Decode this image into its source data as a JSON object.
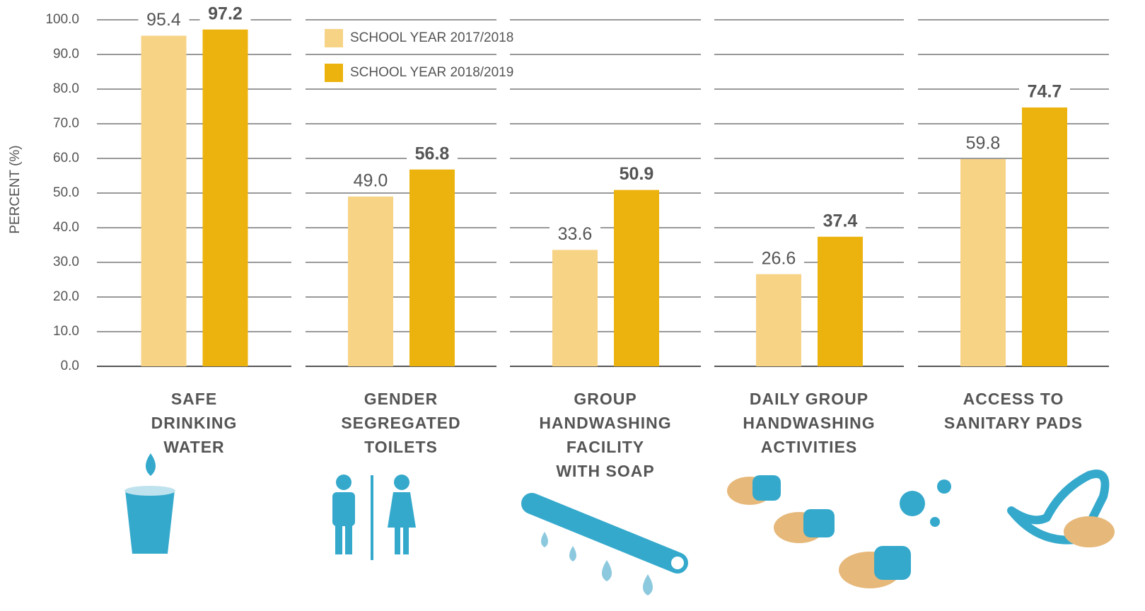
{
  "chart_data": {
    "type": "bar",
    "y_label": "PERCENT (%)",
    "categories": [
      "SAFE\nDRINKING\nWATER",
      "GENDER\nSEGREGATED\nTOILETS",
      "GROUP\nHANDWASHING\nFACILITY\nWITH SOAP",
      "DAILY GROUP\nHANDWASHING\nACTIVITIES",
      "ACCESS TO\nSANITARY PADS"
    ],
    "series": [
      {
        "name": "SCHOOL YEAR 2017/2018",
        "color": "#f7d386",
        "values": [
          95.4,
          49,
          33.6,
          26.6,
          59.8
        ],
        "value_labels": [
          "95.4",
          "49.0",
          "33.6",
          "26.6",
          "59.8"
        ]
      },
      {
        "name": "SCHOOL YEAR 2018/2019",
        "color": "#ecb30f",
        "values": [
          97.2,
          56.8,
          50.9,
          37.4,
          74.7
        ],
        "value_labels": [
          "97.2",
          "56.8",
          "50.9",
          "37.4",
          "74.7"
        ]
      }
    ],
    "ylim": [
      0,
      100
    ],
    "yticks": [
      {
        "value": 0,
        "label": "0.0"
      },
      {
        "value": 10,
        "label": "10.0"
      },
      {
        "value": 20,
        "label": "20.0"
      },
      {
        "value": 30,
        "label": "30.0"
      },
      {
        "value": 40,
        "label": "40.0"
      },
      {
        "value": 50,
        "label": "50.0"
      },
      {
        "value": 60,
        "label": "60.0"
      },
      {
        "value": 70,
        "label": "70.0"
      },
      {
        "value": 80,
        "label": "80.0"
      },
      {
        "value": 90,
        "label": "90.0"
      },
      {
        "value": 100,
        "label": "100.0"
      }
    ],
    "grid": true
  }
}
